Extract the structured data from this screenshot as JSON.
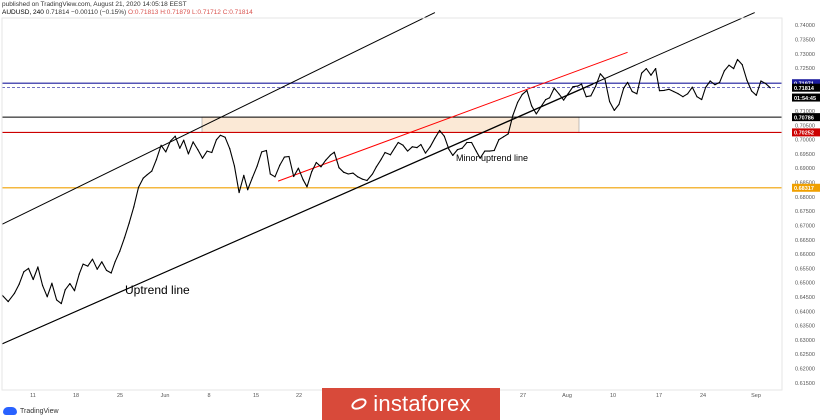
{
  "header": {
    "published": "published on TradingView.com, August 21, 2020 14:05:18 EEST",
    "symbol": "AUDUSD, 240",
    "last": "0.71814",
    "change": "−0.00110 (−0.15%)",
    "o": "O:0.71813",
    "h": "H:0.71879",
    "l": "L:0.71712",
    "c": "C:0.71814"
  },
  "watermark": {
    "text": "instaforex"
  },
  "logo": {
    "text": "TradingView"
  },
  "colors": {
    "price": "#000000",
    "channel": "#000000",
    "minor_trend": "#ff0000",
    "blue_level": "#1c1c9e",
    "red_level": "#cc0000",
    "orange_level": "#f0a000",
    "zone_fill": "#fbe9d6"
  },
  "chart_data": {
    "type": "line",
    "title": "",
    "xlabel": "",
    "ylabel": "",
    "x_tick_labels": [
      "11",
      "18",
      "25",
      "Jun",
      "8",
      "15",
      "22",
      "27",
      "Aug",
      "10",
      "17",
      "24",
      "Sep"
    ],
    "y_tick_labels": [
      "0.74000",
      "0.73500",
      "0.73000",
      "0.72500",
      "0.72000",
      "0.71500",
      "0.71000",
      "0.70500",
      "0.70000",
      "0.69500",
      "0.69000",
      "0.68500",
      "0.68000",
      "0.67500",
      "0.67000",
      "0.66500",
      "0.66000",
      "0.65500",
      "0.65000",
      "0.64500",
      "0.64000",
      "0.63500",
      "0.63000",
      "0.62500",
      "0.62000",
      "0.61500"
    ],
    "ylim": [
      0.6125,
      0.7425
    ],
    "price_labels": [
      {
        "text": "0.71971",
        "value": 0.71971,
        "color": "#1c1c9e"
      },
      {
        "text": "0.71814",
        "value": 0.71814,
        "color": "#000000"
      },
      {
        "text": "01:54:45",
        "value": 0.7147,
        "color": "#000000"
      },
      {
        "text": "0.70786",
        "value": 0.70786,
        "color": "#000000"
      },
      {
        "text": "0.70252",
        "value": 0.70252,
        "color": "#cc0000"
      },
      {
        "text": "0.68317",
        "value": 0.68317,
        "color": "#f0a000"
      }
    ],
    "levels": [
      {
        "value": 0.71971,
        "color": "#1c1c9e"
      },
      {
        "value": 0.71814,
        "color": "#1c1c9e",
        "dashed": true
      },
      {
        "value": 0.70786,
        "color": "#000000"
      },
      {
        "value": 0.70252,
        "color": "#cc0000"
      },
      {
        "value": 0.68317,
        "color": "#f0a000"
      }
    ],
    "annotations": [
      {
        "text": "Uptrend line"
      },
      {
        "text": "Minor uptrend line"
      }
    ],
    "trendlines": [
      {
        "name": "channel-upper",
        "color": "#000000",
        "from": [
          0,
          0.6704
        ],
        "to": [
          55.5,
          0.7444
        ]
      },
      {
        "name": "channel-middle",
        "color": "#000000",
        "from": [
          0,
          0.6286
        ],
        "to": [
          96.5,
          0.7444
        ]
      },
      {
        "name": "channel-lower",
        "color": "#000000",
        "from": [
          0,
          0.6286
        ],
        "to": [
          75.8,
          0.7194
        ]
      },
      {
        "name": "minor-uptrend",
        "color": "#ff0000",
        "from": [
          35.4,
          0.6855
        ],
        "to": [
          80.2,
          0.7305
        ]
      }
    ],
    "series": [
      {
        "values": [
          [
            0.0,
            0.6457
          ],
          [
            0.8,
            0.6434
          ],
          [
            1.6,
            0.6463
          ],
          [
            2.2,
            0.6495
          ],
          [
            2.8,
            0.6538
          ],
          [
            3.4,
            0.655
          ],
          [
            4.0,
            0.6511
          ],
          [
            4.6,
            0.6555
          ],
          [
            5.2,
            0.649
          ],
          [
            5.8,
            0.6451
          ],
          [
            6.4,
            0.6498
          ],
          [
            7.0,
            0.644
          ],
          [
            7.6,
            0.6427
          ],
          [
            8.1,
            0.6475
          ],
          [
            8.7,
            0.6497
          ],
          [
            9.3,
            0.6472
          ],
          [
            9.9,
            0.653
          ],
          [
            10.4,
            0.6565
          ],
          [
            11.0,
            0.6558
          ],
          [
            11.6,
            0.6582
          ],
          [
            12.2,
            0.6547
          ],
          [
            12.8,
            0.6573
          ],
          [
            13.4,
            0.6543
          ],
          [
            14.0,
            0.6534
          ],
          [
            14.5,
            0.6573
          ],
          [
            15.1,
            0.661
          ],
          [
            15.7,
            0.6657
          ],
          [
            16.3,
            0.6708
          ],
          [
            16.9,
            0.6765
          ],
          [
            17.5,
            0.6833
          ],
          [
            18.1,
            0.6865
          ],
          [
            18.6,
            0.6877
          ],
          [
            19.2,
            0.689
          ],
          [
            19.8,
            0.693
          ],
          [
            20.4,
            0.698
          ],
          [
            21.0,
            0.6957
          ],
          [
            21.6,
            0.6995
          ],
          [
            22.2,
            0.7012
          ],
          [
            22.8,
            0.697
          ],
          [
            23.3,
            0.6998
          ],
          [
            23.9,
            0.695
          ],
          [
            24.5,
            0.6992
          ],
          [
            25.1,
            0.6965
          ],
          [
            25.7,
            0.6935
          ],
          [
            26.3,
            0.696
          ],
          [
            26.9,
            0.6955
          ],
          [
            27.5,
            0.7
          ],
          [
            28.0,
            0.7015
          ],
          [
            28.6,
            0.7008
          ],
          [
            29.2,
            0.6968
          ],
          [
            29.8,
            0.6908
          ],
          [
            30.4,
            0.6815
          ],
          [
            31.0,
            0.6875
          ],
          [
            31.5,
            0.6825
          ],
          [
            32.1,
            0.6867
          ],
          [
            32.7,
            0.6907
          ],
          [
            33.3,
            0.6957
          ],
          [
            33.9,
            0.6962
          ],
          [
            34.4,
            0.688
          ],
          [
            35.0,
            0.687
          ],
          [
            35.6,
            0.691
          ],
          [
            36.2,
            0.6939
          ],
          [
            36.8,
            0.6941
          ],
          [
            37.4,
            0.6871
          ],
          [
            38.0,
            0.69
          ],
          [
            38.6,
            0.686
          ],
          [
            39.1,
            0.6835
          ],
          [
            39.7,
            0.6888
          ],
          [
            40.3,
            0.692
          ],
          [
            40.9,
            0.6905
          ],
          [
            41.5,
            0.6928
          ],
          [
            42.1,
            0.6946
          ],
          [
            42.6,
            0.6956
          ],
          [
            43.2,
            0.6902
          ],
          [
            43.8,
            0.6886
          ],
          [
            44.4,
            0.688
          ],
          [
            45.0,
            0.6883
          ],
          [
            45.6,
            0.687
          ],
          [
            46.2,
            0.6862
          ],
          [
            46.8,
            0.6857
          ],
          [
            47.5,
            0.688
          ],
          [
            48.0,
            0.6905
          ],
          [
            48.6,
            0.6931
          ],
          [
            49.1,
            0.6955
          ],
          [
            49.8,
            0.6947
          ],
          [
            50.4,
            0.6973
          ],
          [
            50.8,
            0.699
          ],
          [
            51.4,
            0.6981
          ],
          [
            52.0,
            0.696
          ],
          [
            52.6,
            0.6975
          ],
          [
            53.2,
            0.6972
          ],
          [
            53.7,
            0.6983
          ],
          [
            54.3,
            0.6953
          ],
          [
            54.9,
            0.6975
          ],
          [
            55.5,
            0.7005
          ],
          [
            56.1,
            0.7032
          ],
          [
            56.7,
            0.7012
          ],
          [
            57.3,
            0.6966
          ],
          [
            57.8,
            0.6945
          ],
          [
            58.4,
            0.6965
          ],
          [
            59.0,
            0.697
          ],
          [
            59.6,
            0.699
          ],
          [
            60.2,
            0.699
          ],
          [
            60.8,
            0.696
          ],
          [
            61.3,
            0.6935
          ],
          [
            61.9,
            0.696
          ],
          [
            62.5,
            0.696
          ],
          [
            63.1,
            0.6962
          ],
          [
            63.7,
            0.7
          ],
          [
            64.3,
            0.701
          ],
          [
            64.9,
            0.702
          ],
          [
            65.5,
            0.7085
          ],
          [
            66.1,
            0.713
          ],
          [
            66.7,
            0.7158
          ],
          [
            67.3,
            0.7172
          ],
          [
            67.9,
            0.7118
          ],
          [
            68.5,
            0.709
          ],
          [
            69.1,
            0.7115
          ],
          [
            69.7,
            0.714
          ],
          [
            70.2,
            0.7146
          ],
          [
            70.8,
            0.718
          ],
          [
            71.4,
            0.716
          ],
          [
            72.0,
            0.7138
          ],
          [
            72.6,
            0.7161
          ],
          [
            73.2,
            0.7185
          ],
          [
            73.8,
            0.7187
          ],
          [
            74.3,
            0.7194
          ],
          [
            74.9,
            0.715
          ],
          [
            75.5,
            0.7153
          ],
          [
            76.1,
            0.7186
          ],
          [
            76.7,
            0.723
          ],
          [
            77.3,
            0.7212
          ],
          [
            77.9,
            0.7133
          ],
          [
            78.5,
            0.7102
          ],
          [
            79.1,
            0.7123
          ],
          [
            79.7,
            0.718
          ],
          [
            80.2,
            0.72
          ],
          [
            80.8,
            0.7168
          ],
          [
            81.4,
            0.716
          ],
          [
            82.0,
            0.7232
          ],
          [
            82.6,
            0.7248
          ],
          [
            83.2,
            0.7225
          ],
          [
            83.8,
            0.7248
          ],
          [
            84.3,
            0.7171
          ],
          [
            84.9,
            0.7172
          ],
          [
            85.5,
            0.7176
          ],
          [
            86.1,
            0.7168
          ],
          [
            86.7,
            0.716
          ],
          [
            87.3,
            0.715
          ],
          [
            87.9,
            0.716
          ],
          [
            88.5,
            0.7183
          ],
          [
            89.1,
            0.715
          ],
          [
            89.7,
            0.714
          ],
          [
            90.2,
            0.7182
          ],
          [
            90.8,
            0.7205
          ],
          [
            91.4,
            0.7192
          ],
          [
            92.0,
            0.72
          ],
          [
            92.6,
            0.724
          ],
          [
            93.2,
            0.726
          ],
          [
            93.8,
            0.7248
          ],
          [
            94.3,
            0.728
          ],
          [
            94.9,
            0.7262
          ],
          [
            95.5,
            0.7208
          ],
          [
            96.1,
            0.717
          ],
          [
            96.7,
            0.7155
          ],
          [
            97.3,
            0.7205
          ],
          [
            97.9,
            0.7196
          ],
          [
            98.5,
            0.7181
          ]
        ]
      }
    ]
  }
}
